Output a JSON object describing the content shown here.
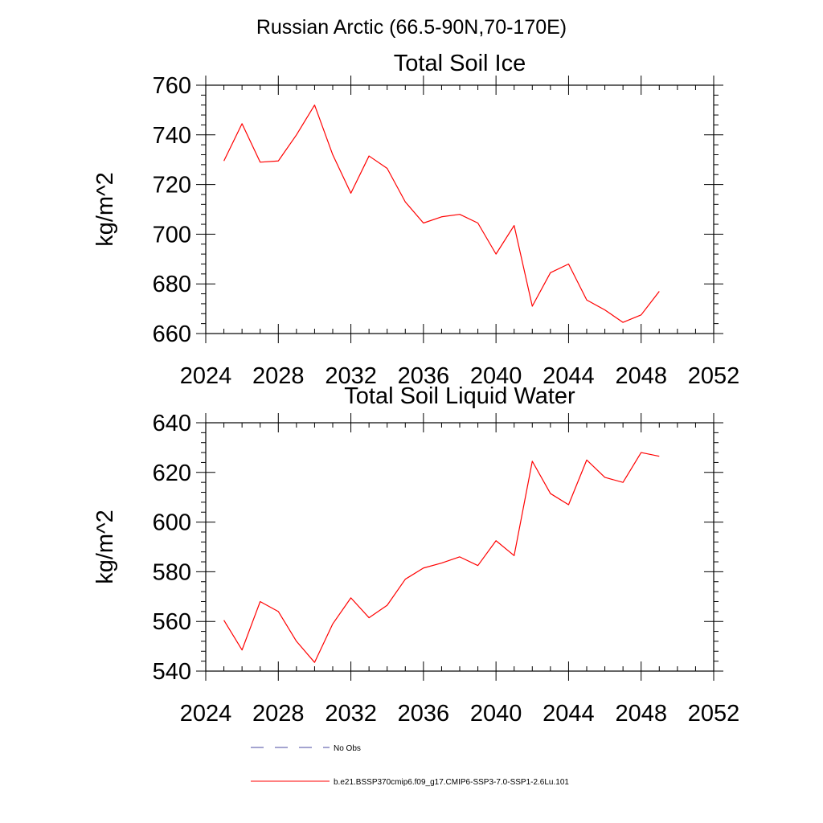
{
  "figure": {
    "title": "Russian Arctic (66.5-90N,70-170E)"
  },
  "legend": {
    "items": [
      {
        "label": "No Obs",
        "color": "#4a4aa0",
        "style": "dashed"
      },
      {
        "label": "b.e21.BSSP370cmip6.f09_g17.CMIP6-SSP3-7.0-SSP1-2.6Lu.101",
        "color": "#ff0000",
        "style": "solid"
      }
    ]
  },
  "chart_data": [
    {
      "type": "line",
      "title": "Total Soil Ice",
      "xlabel": "",
      "ylabel": "kg/m^2",
      "xlim": [
        2024,
        2052
      ],
      "ylim": [
        660,
        760
      ],
      "x_ticks": [
        2024,
        2028,
        2032,
        2036,
        2040,
        2044,
        2048,
        2052
      ],
      "y_ticks": [
        660,
        680,
        700,
        720,
        740,
        760
      ],
      "x_tick_labels": [
        "2024",
        "2028",
        "2032",
        "2036",
        "2040",
        "2044",
        "2048",
        "2052"
      ],
      "y_tick_labels": [
        "660",
        "680",
        "700",
        "720",
        "740",
        "760"
      ],
      "grid": false,
      "x": [
        2025,
        2026,
        2027,
        2028,
        2029,
        2030,
        2031,
        2032,
        2033,
        2034,
        2035,
        2036,
        2037,
        2038,
        2039,
        2040,
        2041,
        2042,
        2043,
        2044,
        2045,
        2046,
        2047,
        2048,
        2049
      ],
      "series": [
        {
          "name": "b.e21.BSSP370cmip6.f09_g17.CMIP6-SSP3-7.0-SSP1-2.6Lu.101",
          "color": "#ff0000",
          "values": [
            729.5,
            744.5,
            729,
            729.5,
            740,
            752,
            732,
            716.5,
            731.5,
            726.5,
            713,
            704.5,
            707,
            708,
            704.5,
            692,
            703.5,
            671,
            684.5,
            688,
            673.5,
            669.5,
            664.5,
            667.5,
            677
          ]
        }
      ]
    },
    {
      "type": "line",
      "title": "Total Soil Liquid Water",
      "xlabel": "",
      "ylabel": "kg/m^2",
      "xlim": [
        2024,
        2052
      ],
      "ylim": [
        540,
        640
      ],
      "x_ticks": [
        2024,
        2028,
        2032,
        2036,
        2040,
        2044,
        2048,
        2052
      ],
      "y_ticks": [
        540,
        560,
        580,
        600,
        620,
        640
      ],
      "x_tick_labels": [
        "2024",
        "2028",
        "2032",
        "2036",
        "2040",
        "2044",
        "2048",
        "2052"
      ],
      "y_tick_labels": [
        "540",
        "560",
        "580",
        "600",
        "620",
        "640"
      ],
      "grid": false,
      "x": [
        2025,
        2026,
        2027,
        2028,
        2029,
        2030,
        2031,
        2032,
        2033,
        2034,
        2035,
        2036,
        2037,
        2038,
        2039,
        2040,
        2041,
        2042,
        2043,
        2044,
        2045,
        2046,
        2047,
        2048,
        2049
      ],
      "series": [
        {
          "name": "b.e21.BSSP370cmip6.f09_g17.CMIP6-SSP3-7.0-SSP1-2.6Lu.101",
          "color": "#ff0000",
          "values": [
            560.5,
            548.5,
            568,
            564,
            552,
            543.5,
            559,
            569.5,
            561.5,
            566.5,
            577,
            581.5,
            583.5,
            586,
            582.5,
            592.5,
            586.5,
            624.5,
            611.5,
            607,
            625,
            618,
            616,
            628,
            626.5
          ]
        }
      ]
    }
  ]
}
